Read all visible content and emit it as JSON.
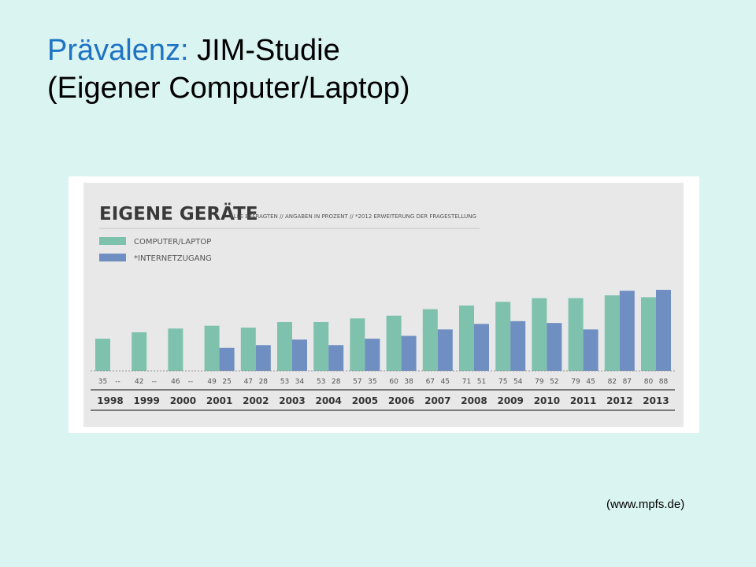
{
  "slide": {
    "title_accent": "Prävalenz:",
    "title_rest": " JIM-Studie",
    "title_line2": "(Eigener Computer/Laptop)",
    "source": "(www.mpfs.de)"
  },
  "colors": {
    "background": "#daf4f1",
    "title_accent": "#1f73c4",
    "series_computer": "#7ec2ae",
    "series_internet": "#6f8ec2"
  },
  "chart_data": {
    "type": "bar",
    "title": "EIGENE GERÄTE",
    "subtitle": "ALLE BEFRAGTEN // ANGABEN IN PROZENT // *2012 ERWEITERUNG DER FRAGESTELLUNG",
    "categories": [
      "1998",
      "1999",
      "2000",
      "2001",
      "2002",
      "2003",
      "2004",
      "2005",
      "2006",
      "2007",
      "2008",
      "2009",
      "2010",
      "2011",
      "2012",
      "2013"
    ],
    "series": [
      {
        "name": "COMPUTER/LAPTOP",
        "values": [
          35,
          42,
          46,
          49,
          47,
          53,
          53,
          57,
          60,
          67,
          71,
          75,
          79,
          79,
          82,
          80
        ],
        "labels": [
          "35",
          "42",
          "46",
          "49",
          "47",
          "53",
          "53",
          "57",
          "60",
          "67",
          "71",
          "75",
          "79",
          "79",
          "82",
          "80"
        ]
      },
      {
        "name": "*INTERNETZUGANG",
        "values": [
          null,
          null,
          null,
          25,
          28,
          34,
          28,
          35,
          38,
          45,
          51,
          54,
          52,
          45,
          87,
          88
        ],
        "labels": [
          "--",
          "--",
          "--",
          "25",
          "28",
          "34",
          "28",
          "35",
          "38",
          "45",
          "51",
          "54",
          "52",
          "45",
          "87",
          "88"
        ]
      }
    ],
    "legend_position": "top-left",
    "grid": false,
    "ylim": [
      0,
      100
    ]
  }
}
